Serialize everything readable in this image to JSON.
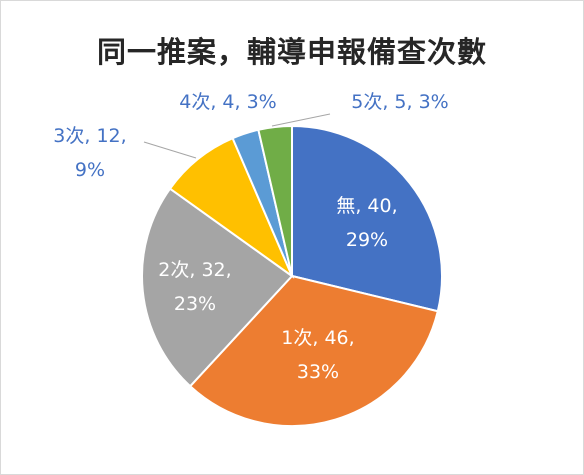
{
  "chart_data": {
    "type": "pie",
    "title": "同一推案，輔導申報備查次數",
    "categories": [
      "無",
      "1次",
      "2次",
      "3次",
      "4次",
      "5次"
    ],
    "values": [
      40,
      46,
      32,
      12,
      4,
      5
    ],
    "percents": [
      "29%",
      "33%",
      "23%",
      "9%",
      "3%",
      "3%"
    ],
    "labels_line1": [
      "無, 40,",
      "1次, 46,",
      "2次, 32,",
      "3次, 12,",
      "4次, 4, 3%",
      "5次, 5, 3%"
    ],
    "labels_line2": [
      "29%",
      "33%",
      "23%",
      "9%",
      "",
      ""
    ],
    "colors": [
      "#4472C4",
      "#ED7D31",
      "#A5A5A5",
      "#FFC000",
      "#5B9BD5",
      "#70AD47"
    ],
    "label_colors": [
      "#ffffff",
      "#ffffff",
      "#ffffff",
      "#4472C4",
      "#4472C4",
      "#4472C4"
    ],
    "legend": "none"
  }
}
